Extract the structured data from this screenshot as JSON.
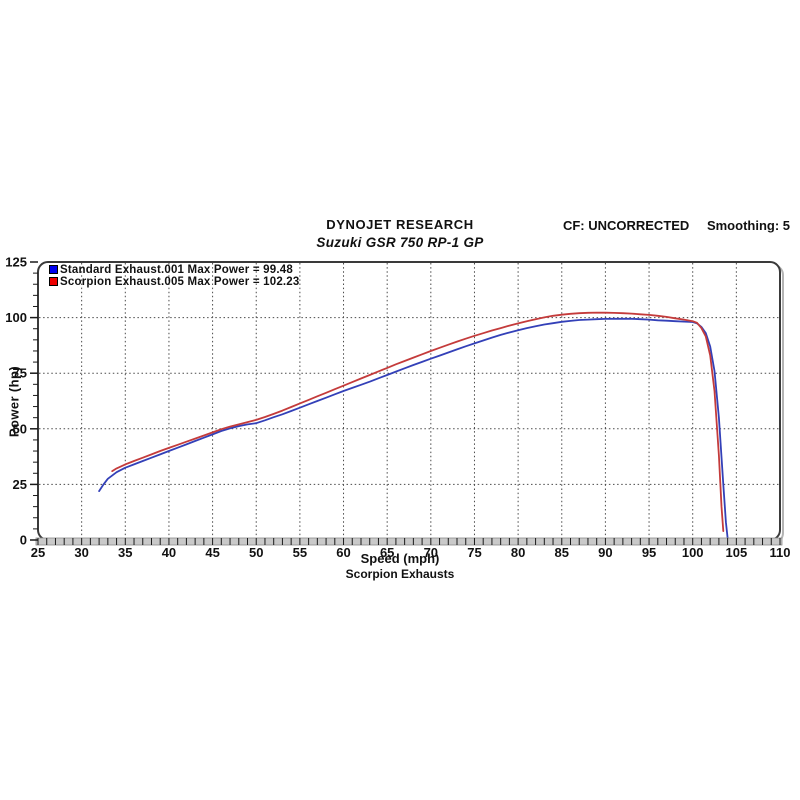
{
  "header": {
    "company": "DYNOJET RESEARCH",
    "cf": "CF: UNCORRECTED",
    "smoothing": "Smoothing: 5"
  },
  "footer": {
    "caption": "Scorpion Exhausts"
  },
  "chart_data": {
    "type": "line",
    "title": "Suzuki GSR 750 RP-1 GP",
    "xlabel": "Speed (mph)",
    "ylabel": "Power (hp)",
    "xlim": [
      25,
      110
    ],
    "ylim": [
      0,
      125
    ],
    "x_major_step": 5,
    "x_minor_step": 1,
    "y_major_step": 25,
    "y_minor_step": 5,
    "grid": "dashed",
    "legend_position": "top-left",
    "grid_color": "#4a4a4a",
    "frame_color": "#3a3a3a",
    "shadow_color": "#b4b4b4",
    "axisbar_color": "#c9c9c9",
    "tick_color": "#1a1a1a",
    "series": [
      {
        "name": "Standard Exhaust.001",
        "label": "Standard Exhaust.001 Max Power = 99.48",
        "max_power": 99.48,
        "color": "#3340b8",
        "swatch": "#0000ee",
        "points": [
          [
            32,
            22
          ],
          [
            32.5,
            25
          ],
          [
            33,
            27.5
          ],
          [
            34,
            30.5
          ],
          [
            35,
            32.5
          ],
          [
            36,
            34
          ],
          [
            37,
            35.5
          ],
          [
            38,
            37
          ],
          [
            39,
            38.5
          ],
          [
            40,
            40
          ],
          [
            41,
            41.5
          ],
          [
            42,
            43
          ],
          [
            43,
            44.5
          ],
          [
            44,
            46
          ],
          [
            45,
            47.5
          ],
          [
            46,
            49
          ],
          [
            47,
            50.2
          ],
          [
            48,
            51.2
          ],
          [
            49,
            52
          ],
          [
            50,
            52.5
          ],
          [
            51,
            53.8
          ],
          [
            52,
            55.2
          ],
          [
            53,
            56.5
          ],
          [
            54,
            58
          ],
          [
            55,
            59.5
          ],
          [
            56,
            61
          ],
          [
            57,
            62.5
          ],
          [
            58,
            64
          ],
          [
            59,
            65.5
          ],
          [
            60,
            67
          ],
          [
            61,
            68.4
          ],
          [
            62,
            69.8
          ],
          [
            63,
            71.2
          ],
          [
            64,
            72.7
          ],
          [
            65,
            74.2
          ],
          [
            66,
            75.7
          ],
          [
            67,
            77.2
          ],
          [
            68,
            78.7
          ],
          [
            69,
            80.1
          ],
          [
            70,
            81.5
          ],
          [
            71,
            82.9
          ],
          [
            72,
            84.3
          ],
          [
            73,
            85.7
          ],
          [
            74,
            87.1
          ],
          [
            75,
            88.4
          ],
          [
            76,
            89.7
          ],
          [
            77,
            91
          ],
          [
            78,
            92.2
          ],
          [
            79,
            93.3
          ],
          [
            80,
            94.3
          ],
          [
            81,
            95.3
          ],
          [
            82,
            96.1
          ],
          [
            83,
            96.9
          ],
          [
            84,
            97.5
          ],
          [
            85,
            98.1
          ],
          [
            86,
            98.5
          ],
          [
            87,
            98.9
          ],
          [
            88,
            99.1
          ],
          [
            89,
            99.3
          ],
          [
            90,
            99.4
          ],
          [
            91,
            99.45
          ],
          [
            92,
            99.48
          ],
          [
            93,
            99.45
          ],
          [
            94,
            99.3
          ],
          [
            95,
            99.1
          ],
          [
            96,
            98.8
          ],
          [
            97,
            98.6
          ],
          [
            98,
            98.4
          ],
          [
            99,
            98.2
          ],
          [
            100,
            98
          ],
          [
            100.5,
            97.4
          ],
          [
            101,
            95.8
          ],
          [
            101.5,
            93
          ],
          [
            102,
            87
          ],
          [
            102.5,
            76
          ],
          [
            103,
            55
          ],
          [
            103.5,
            25
          ],
          [
            103.8,
            8
          ],
          [
            104,
            1
          ]
        ]
      },
      {
        "name": "Scorpion Exhaust.005",
        "label": "Scorpion Exhaust.005 Max Power = 102.23",
        "max_power": 102.23,
        "color": "#c43b3b",
        "swatch": "#ee0000",
        "points": [
          [
            33.5,
            31
          ],
          [
            34,
            32.2
          ],
          [
            35,
            34
          ],
          [
            36,
            35.5
          ],
          [
            37,
            37
          ],
          [
            38,
            38.5
          ],
          [
            39,
            40
          ],
          [
            40,
            41.4
          ],
          [
            41,
            42.8
          ],
          [
            42,
            44.2
          ],
          [
            43,
            45.6
          ],
          [
            44,
            47
          ],
          [
            45,
            48.4
          ],
          [
            46,
            49.8
          ],
          [
            47,
            51
          ],
          [
            48,
            52
          ],
          [
            49,
            53
          ],
          [
            50,
            54
          ],
          [
            51,
            55.3
          ],
          [
            52,
            56.7
          ],
          [
            53,
            58.2
          ],
          [
            54,
            59.8
          ],
          [
            55,
            61.4
          ],
          [
            56,
            63
          ],
          [
            57,
            64.6
          ],
          [
            58,
            66.2
          ],
          [
            59,
            67.8
          ],
          [
            60,
            69.4
          ],
          [
            61,
            71
          ],
          [
            62,
            72.6
          ],
          [
            63,
            74.2
          ],
          [
            64,
            75.8
          ],
          [
            65,
            77.4
          ],
          [
            66,
            79
          ],
          [
            67,
            80.5
          ],
          [
            68,
            82
          ],
          [
            69,
            83.5
          ],
          [
            70,
            85
          ],
          [
            71,
            86.4
          ],
          [
            72,
            87.8
          ],
          [
            73,
            89.2
          ],
          [
            74,
            90.5
          ],
          [
            75,
            91.8
          ],
          [
            76,
            93
          ],
          [
            77,
            94.2
          ],
          [
            78,
            95.3
          ],
          [
            79,
            96.4
          ],
          [
            80,
            97.4
          ],
          [
            81,
            98.4
          ],
          [
            82,
            99.3
          ],
          [
            83,
            100.1
          ],
          [
            84,
            100.8
          ],
          [
            85,
            101.3
          ],
          [
            86,
            101.7
          ],
          [
            87,
            102
          ],
          [
            88,
            102.15
          ],
          [
            89,
            102.23
          ],
          [
            90,
            102.2
          ],
          [
            91,
            102.1
          ],
          [
            92,
            102
          ],
          [
            93,
            101.8
          ],
          [
            94,
            101.5
          ],
          [
            95,
            101.2
          ],
          [
            96,
            100.8
          ],
          [
            97,
            100.3
          ],
          [
            98,
            99.7
          ],
          [
            99,
            99.1
          ],
          [
            100,
            98.4
          ],
          [
            100.5,
            97.6
          ],
          [
            101,
            95.3
          ],
          [
            101.5,
            91.5
          ],
          [
            102,
            83
          ],
          [
            102.5,
            67
          ],
          [
            103,
            38
          ],
          [
            103.3,
            15
          ],
          [
            103.5,
            4
          ]
        ]
      }
    ]
  }
}
